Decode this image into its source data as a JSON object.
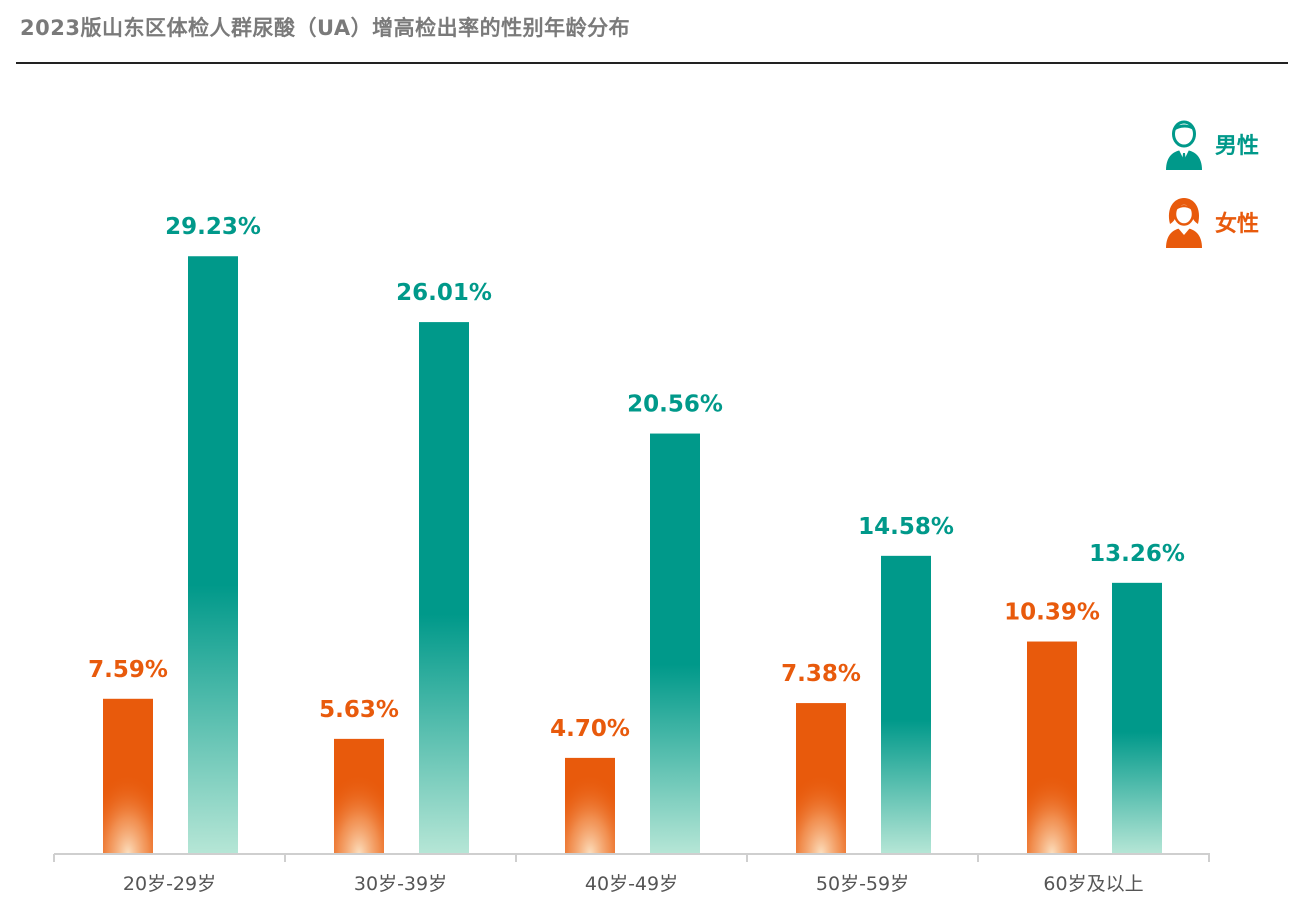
{
  "title": "2023版山东区体检人群尿酸（UA）增高检出率的性别年龄分布",
  "chart_data": {
    "type": "bar",
    "categories": [
      "20岁-29岁",
      "30岁-39岁",
      "40岁-49岁",
      "50岁-59岁",
      "60岁及以上"
    ],
    "series": [
      {
        "name": "女性",
        "color": "#e85a0c",
        "values": [
          7.59,
          5.63,
          4.7,
          7.38,
          10.39
        ],
        "labels": [
          "7.59%",
          "5.63%",
          "4.70%",
          "7.38%",
          "10.39%"
        ]
      },
      {
        "name": "男性",
        "color": "#00998a",
        "values": [
          29.23,
          26.01,
          20.56,
          14.58,
          13.26
        ],
        "labels": [
          "29.23%",
          "26.01%",
          "20.56%",
          "14.58%",
          "13.26%"
        ]
      }
    ],
    "ylim": [
      0,
      30
    ],
    "grid": false,
    "legend": {
      "position": "top-right",
      "items": [
        {
          "label": "男性",
          "icon": "male-person-icon",
          "color": "#00998a"
        },
        {
          "label": "女性",
          "icon": "female-person-icon",
          "color": "#e85a0c"
        }
      ]
    },
    "xlabel": "",
    "ylabel": ""
  }
}
